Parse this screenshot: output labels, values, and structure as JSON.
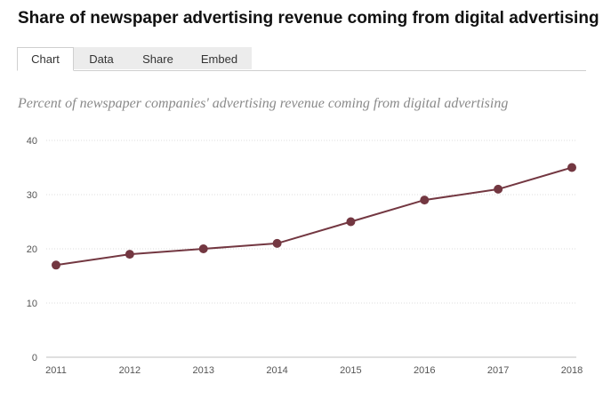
{
  "title": "Share of newspaper advertising revenue coming from digital advertising",
  "tabs": [
    {
      "label": "Chart",
      "active": true
    },
    {
      "label": "Data",
      "active": false
    },
    {
      "label": "Share",
      "active": false
    },
    {
      "label": "Embed",
      "active": false
    }
  ],
  "chart_data": {
    "type": "line",
    "subtitle": "Percent of newspaper companies' advertising revenue coming from digital advertising",
    "x": [
      "2011",
      "2012",
      "2013",
      "2014",
      "2015",
      "2016",
      "2017",
      "2018"
    ],
    "series": [
      {
        "values": [
          17,
          19,
          20,
          21,
          25,
          29,
          31,
          35
        ]
      }
    ],
    "yticks": [
      0,
      10,
      20,
      30,
      40
    ],
    "ylim": [
      0,
      40
    ],
    "grid": true,
    "color": "#733741"
  }
}
